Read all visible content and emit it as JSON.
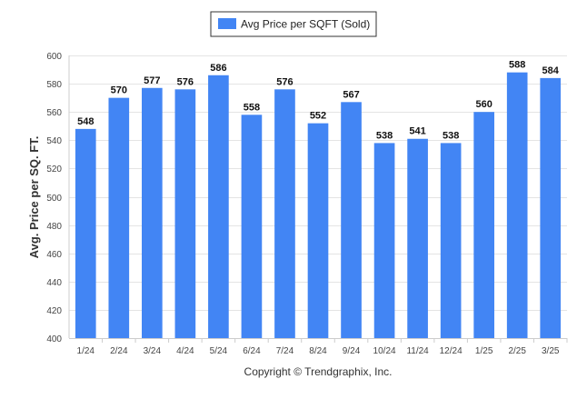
{
  "chart_data": {
    "type": "bar",
    "title": "",
    "xlabel": "",
    "ylabel": "Avg. Price per SQ. FT.",
    "categories": [
      "1/24",
      "2/24",
      "3/24",
      "4/24",
      "5/24",
      "6/24",
      "7/24",
      "8/24",
      "9/24",
      "10/24",
      "11/24",
      "12/24",
      "1/25",
      "2/25",
      "3/25"
    ],
    "series": [
      {
        "name": "Avg Price per SQFT (Sold)",
        "values": [
          548,
          570,
          577,
          576,
          586,
          558,
          576,
          552,
          567,
          538,
          541,
          538,
          560,
          588,
          584
        ],
        "color": "#4285f4"
      }
    ],
    "ylim": [
      400,
      600
    ],
    "yticks": [
      400,
      420,
      440,
      460,
      480,
      500,
      520,
      540,
      560,
      580,
      600
    ],
    "grid": true,
    "legend": "top-center",
    "data_labels": true
  },
  "footer": {
    "copyright": "Copyright © Trendgraphix, Inc."
  },
  "colors": {
    "bar": "#4285f4",
    "grid": "#e4e4e4",
    "axis": "#cccccc"
  }
}
